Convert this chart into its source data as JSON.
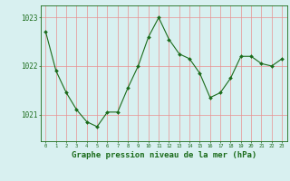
{
  "x": [
    0,
    1,
    2,
    3,
    4,
    5,
    6,
    7,
    8,
    9,
    10,
    11,
    12,
    13,
    14,
    15,
    16,
    17,
    18,
    19,
    20,
    21,
    22,
    23
  ],
  "y": [
    1022.7,
    1021.9,
    1021.45,
    1021.1,
    1020.85,
    1020.75,
    1021.05,
    1021.05,
    1021.55,
    1022.0,
    1022.6,
    1023.0,
    1022.55,
    1022.25,
    1022.15,
    1021.85,
    1021.35,
    1021.45,
    1021.75,
    1022.2,
    1022.2,
    1022.05,
    1022.0,
    1022.15
  ],
  "line_color": "#1a6b1a",
  "marker": "D",
  "marker_size": 2.0,
  "bg_color": "#d8f0f0",
  "plot_bg_color": "#d8f0f0",
  "grid_color": "#e89090",
  "axis_color": "#1a6b1a",
  "tick_color": "#1a6b1a",
  "xlabel": "Graphe pression niveau de la mer (hPa)",
  "xlabel_fontsize": 6.5,
  "yticks": [
    1021,
    1022,
    1023
  ],
  "xticks": [
    0,
    1,
    2,
    3,
    4,
    5,
    6,
    7,
    8,
    9,
    10,
    11,
    12,
    13,
    14,
    15,
    16,
    17,
    18,
    19,
    20,
    21,
    22,
    23
  ],
  "ylim": [
    1020.45,
    1023.25
  ],
  "xlim": [
    -0.5,
    23.5
  ],
  "figsize": [
    3.2,
    2.0
  ],
  "dpi": 100
}
